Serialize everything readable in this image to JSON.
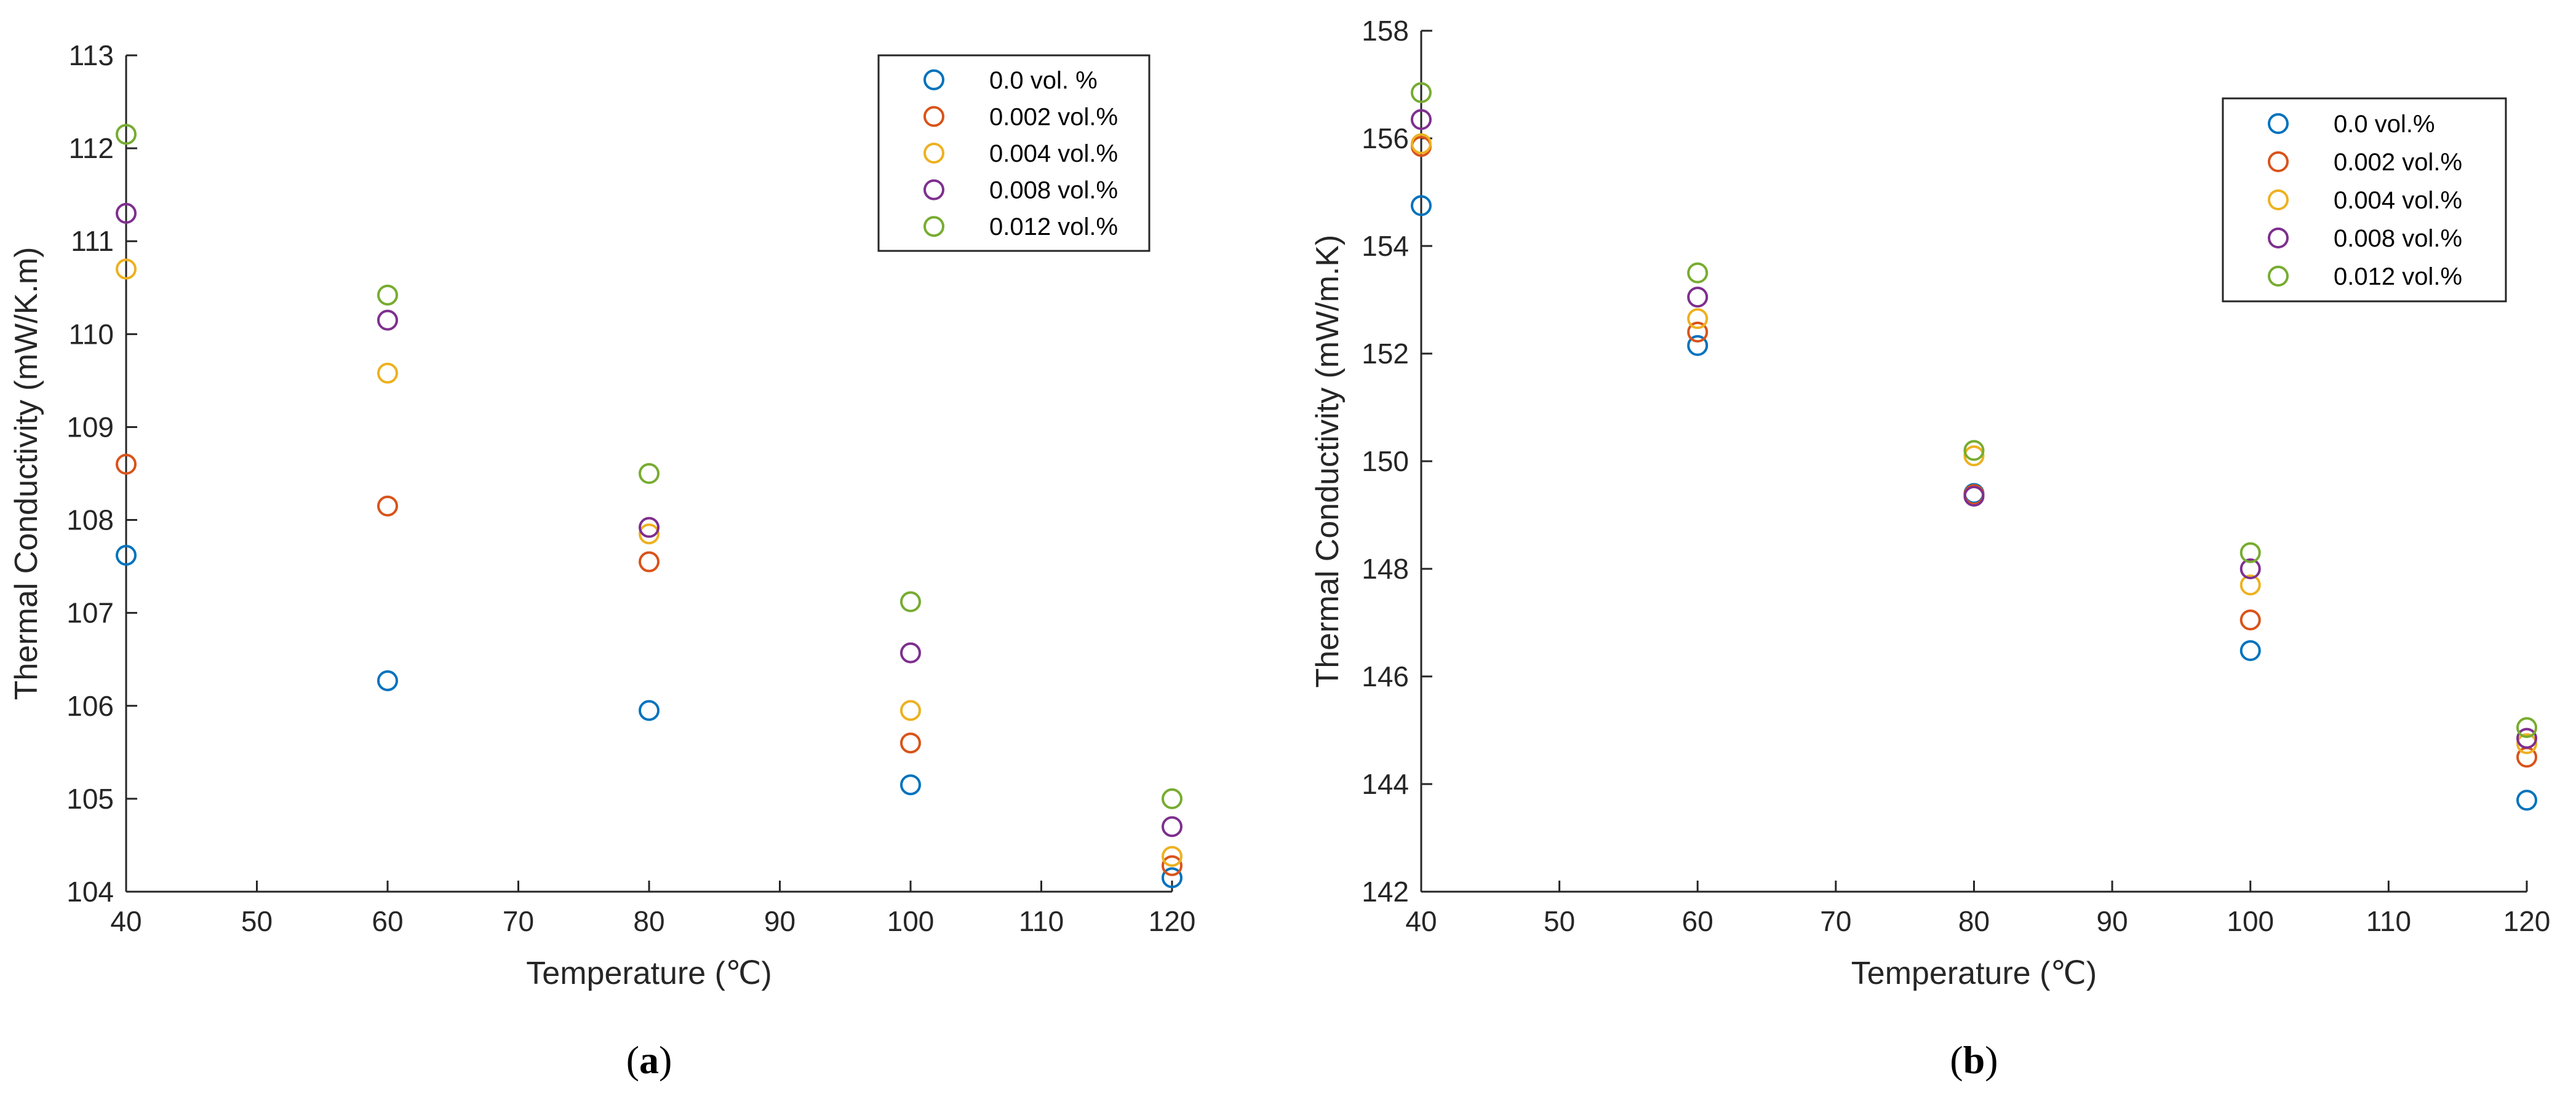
{
  "chart_data": [
    {
      "type": "scatter",
      "panel_label": {
        "open": "(",
        "letter": "a",
        "close": ")"
      },
      "xlabel": "Temperature (℃)",
      "ylabel": "Thermal Conductivity (mW/K.m)",
      "xlim": [
        40,
        120
      ],
      "ylim": [
        104,
        113
      ],
      "xticks": [
        40,
        50,
        60,
        70,
        80,
        90,
        100,
        110,
        120
      ],
      "yticks": [
        104,
        105,
        106,
        107,
        108,
        109,
        110,
        111,
        112,
        113
      ],
      "legend_position": "top-right",
      "grid": false,
      "x": [
        40,
        60,
        80,
        100,
        120
      ],
      "series": [
        {
          "name": "0.0 vol. %",
          "color": "#0072BD",
          "values": [
            107.62,
            106.27,
            105.95,
            105.15,
            104.15
          ]
        },
        {
          "name": "0.002 vol.%",
          "color": "#D95319",
          "values": [
            108.6,
            108.15,
            107.55,
            105.6,
            104.28
          ]
        },
        {
          "name": "0.004 vol.%",
          "color": "#EDB120",
          "values": [
            110.7,
            109.58,
            107.85,
            105.95,
            104.38
          ]
        },
        {
          "name": "0.008 vol.%",
          "color": "#7E2F8E",
          "values": [
            111.3,
            110.15,
            107.92,
            106.57,
            104.7
          ]
        },
        {
          "name": "0.012 vol.%",
          "color": "#77AC30",
          "values": [
            112.15,
            110.42,
            108.5,
            107.12,
            105.0
          ]
        }
      ]
    },
    {
      "type": "scatter",
      "panel_label": {
        "open": "(",
        "letter": "b",
        "close": ")"
      },
      "xlabel": "Temperature (℃)",
      "ylabel": "Thermal Conductivity (mW/m.K)",
      "xlim": [
        40,
        120
      ],
      "ylim": [
        142,
        158
      ],
      "xticks": [
        40,
        50,
        60,
        70,
        80,
        90,
        100,
        110,
        120
      ],
      "yticks": [
        142,
        144,
        146,
        148,
        150,
        152,
        154,
        156,
        158
      ],
      "legend_position": "top-right",
      "grid": false,
      "x": [
        40,
        60,
        80,
        100,
        120
      ],
      "series": [
        {
          "name": "0.0 vol.%",
          "color": "#0072BD",
          "values": [
            154.75,
            152.15,
            149.4,
            146.48,
            143.7
          ]
        },
        {
          "name": "0.002 vol.%",
          "color": "#D95319",
          "values": [
            155.85,
            152.4,
            149.38,
            147.05,
            144.5
          ]
        },
        {
          "name": "0.004 vol.%",
          "color": "#EDB120",
          "values": [
            155.9,
            152.65,
            150.1,
            147.7,
            144.75
          ]
        },
        {
          "name": "0.008 vol.%",
          "color": "#7E2F8E",
          "values": [
            156.35,
            153.05,
            149.35,
            148.0,
            144.85
          ]
        },
        {
          "name": "0.012 vol.%",
          "color": "#77AC30",
          "values": [
            156.85,
            153.5,
            150.2,
            148.3,
            145.05
          ]
        }
      ]
    }
  ]
}
